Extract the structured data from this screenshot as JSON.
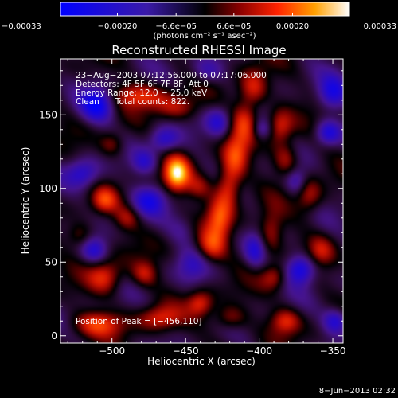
{
  "chart_data": {
    "type": "heatmap",
    "title": "Reconstructed RHESSI Image",
    "xlabel": "Heliocentric X (arcsec)",
    "ylabel": "Heliocentric Y (arcsec)",
    "xlim": [
      -535,
      -343
    ],
    "ylim": [
      -5,
      188
    ],
    "x_ticks": [
      -500,
      -450,
      -400,
      -350
    ],
    "x_tick_labels": [
      "−500",
      "−450",
      "−400",
      "−350"
    ],
    "y_ticks": [
      0,
      50,
      100,
      150
    ],
    "y_tick_labels": [
      "0",
      "50",
      "100",
      "150"
    ],
    "colorbar": {
      "min": -0.00033,
      "max": 0.00033,
      "tick_values": [
        -0.00033,
        -0.0002,
        -6.6e-05,
        6.6e-05,
        0.0002,
        0.00033
      ],
      "tick_labels": [
        "−0.00033",
        "−0.00020",
        "−6.6e−05",
        "6.6e−05",
        "0.00020",
        "0.00033"
      ],
      "unit_label": "(photons cm⁻² s⁻¹ asec⁻²)"
    },
    "annotations": [
      "23−Aug−2003 07:12:56.000 to 07:17:06.000",
      "Detectors: 4F 5F 6F 7F 8F, Att 0",
      "Energy Range: 12.0 − 25.0 keV",
      "Clean      Total counts: 822."
    ],
    "peak_label": "Position of Peak = [−456,110]",
    "peak": {
      "x": -456,
      "y": 110,
      "value": 0.00033
    },
    "blobs": [
      {
        "x": -456,
        "y": 110,
        "sx": 6,
        "sy": 8,
        "v": 1.0
      },
      {
        "x": -441,
        "y": 101,
        "sx": 6,
        "sy": 6,
        "v": 0.35
      },
      {
        "x": -404,
        "y": 168,
        "sx": 7,
        "sy": 9,
        "v": 0.55
      },
      {
        "x": -410,
        "y": 145,
        "sx": 6,
        "sy": 10,
        "v": 0.5
      },
      {
        "x": -416,
        "y": 122,
        "sx": 6,
        "sy": 10,
        "v": 0.55
      },
      {
        "x": -421,
        "y": 101,
        "sx": 6,
        "sy": 10,
        "v": 0.6
      },
      {
        "x": -427,
        "y": 80,
        "sx": 6,
        "sy": 10,
        "v": 0.6
      },
      {
        "x": -433,
        "y": 60,
        "sx": 7,
        "sy": 8,
        "v": 0.55
      },
      {
        "x": -386,
        "y": 142,
        "sx": 6,
        "sy": 8,
        "v": 0.5
      },
      {
        "x": -382,
        "y": 120,
        "sx": 6,
        "sy": 8,
        "v": 0.45
      },
      {
        "x": -392,
        "y": 70,
        "sx": 6,
        "sy": 10,
        "v": 0.45
      },
      {
        "x": -390,
        "y": 40,
        "sx": 6,
        "sy": 6,
        "v": 0.4
      },
      {
        "x": -366,
        "y": 95,
        "sx": 6,
        "sy": 8,
        "v": 0.4
      },
      {
        "x": -358,
        "y": 58,
        "sx": 6,
        "sy": 7,
        "v": 0.35
      },
      {
        "x": -482,
        "y": 163,
        "sx": 14,
        "sy": 6,
        "v": 0.5
      },
      {
        "x": -455,
        "y": 155,
        "sx": 10,
        "sy": 6,
        "v": 0.4
      },
      {
        "x": -500,
        "y": 130,
        "sx": 6,
        "sy": 6,
        "v": 0.35
      },
      {
        "x": -505,
        "y": 92,
        "sx": 6,
        "sy": 6,
        "v": 0.5
      },
      {
        "x": -490,
        "y": 80,
        "sx": 6,
        "sy": 6,
        "v": 0.35
      },
      {
        "x": -522,
        "y": 68,
        "sx": 6,
        "sy": 6,
        "v": 0.35
      },
      {
        "x": -505,
        "y": 40,
        "sx": 8,
        "sy": 8,
        "v": 0.55
      },
      {
        "x": -478,
        "y": 42,
        "sx": 6,
        "sy": 6,
        "v": 0.4
      },
      {
        "x": -510,
        "y": 8,
        "sx": 12,
        "sy": 6,
        "v": 0.55
      },
      {
        "x": -468,
        "y": 12,
        "sx": 10,
        "sy": 6,
        "v": 0.5
      },
      {
        "x": -440,
        "y": 22,
        "sx": 6,
        "sy": 6,
        "v": 0.5
      },
      {
        "x": -420,
        "y": 12,
        "sx": 8,
        "sy": 6,
        "v": 0.4
      },
      {
        "x": -382,
        "y": 10,
        "sx": 7,
        "sy": 6,
        "v": 0.5
      },
      {
        "x": -452,
        "y": 72,
        "sx": 7,
        "sy": 7,
        "v": -0.2
      },
      {
        "x": -510,
        "y": 157,
        "sx": 8,
        "sy": 8,
        "v": -0.75
      },
      {
        "x": -465,
        "y": 133,
        "sx": 7,
        "sy": 6,
        "v": -0.5
      },
      {
        "x": -475,
        "y": 92,
        "sx": 8,
        "sy": 7,
        "v": -0.55
      },
      {
        "x": -520,
        "y": 110,
        "sx": 8,
        "sy": 7,
        "v": -0.55
      },
      {
        "x": -478,
        "y": 118,
        "sx": 6,
        "sy": 6,
        "v": -0.45
      },
      {
        "x": -428,
        "y": 145,
        "sx": 6,
        "sy": 7,
        "v": -0.5
      },
      {
        "x": -350,
        "y": 165,
        "sx": 7,
        "sy": 8,
        "v": -0.6
      },
      {
        "x": -353,
        "y": 138,
        "sx": 6,
        "sy": 6,
        "v": -0.6
      },
      {
        "x": -398,
        "y": 140,
        "sx": 5,
        "sy": 5,
        "v": -0.4
      },
      {
        "x": -372,
        "y": 45,
        "sx": 7,
        "sy": 7,
        "v": -0.75
      },
      {
        "x": -512,
        "y": 58,
        "sx": 6,
        "sy": 6,
        "v": -0.45
      },
      {
        "x": -348,
        "y": 10,
        "sx": 6,
        "sy": 6,
        "v": -0.6
      },
      {
        "x": -445,
        "y": 48,
        "sx": 8,
        "sy": 8,
        "v": -0.35
      },
      {
        "x": -403,
        "y": 58,
        "sx": 5,
        "sy": 8,
        "v": -0.45
      },
      {
        "x": -435,
        "y": 180,
        "sx": 8,
        "sy": 6,
        "v": -0.4
      },
      {
        "x": -375,
        "y": 105,
        "sx": 5,
        "sy": 6,
        "v": -0.4
      }
    ]
  },
  "footer": {
    "timestamp": "8−Jun−2013 02:32"
  },
  "colors": {
    "background": "#000000",
    "text": "#ffffff"
  }
}
